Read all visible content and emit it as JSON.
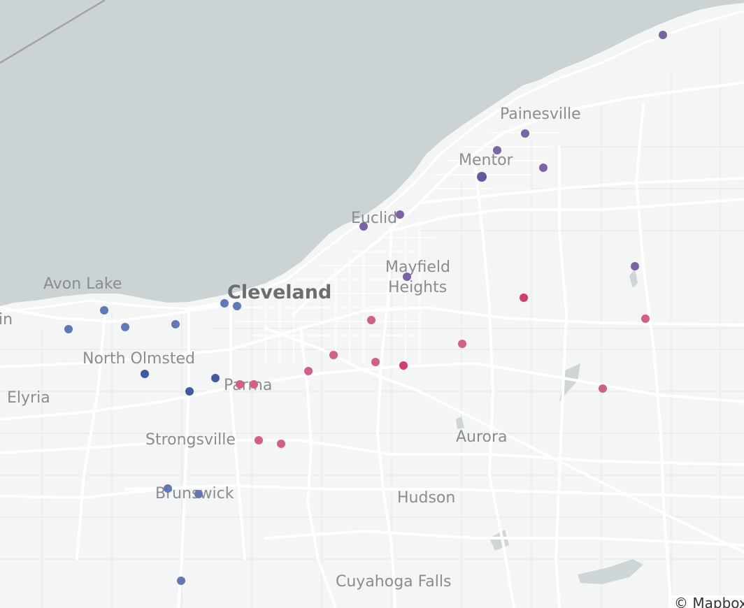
{
  "map": {
    "colors": {
      "water": "#cbd3d4",
      "land": "#f4f5f5",
      "road": "#ffffff",
      "road_minor": "#eceeee",
      "park": "#e7e9e9",
      "label": "#8a8d90",
      "label_major": "#6b6e71",
      "boundary": "#a3a3a3"
    },
    "places": [
      {
        "name": "Painesville"
      },
      {
        "name": "Mentor"
      },
      {
        "name": "Euclid"
      },
      {
        "name": "Mayfield"
      },
      {
        "name": "Heights"
      },
      {
        "name": "Avon Lake"
      },
      {
        "name": "Cleveland"
      },
      {
        "name": "in"
      },
      {
        "name": "North Olmsted"
      },
      {
        "name": "Parma"
      },
      {
        "name": "Elyria"
      },
      {
        "name": "Strongsville"
      },
      {
        "name": "Aurora"
      },
      {
        "name": "Brunswick"
      },
      {
        "name": "Hudson"
      },
      {
        "name": "Cuyahoga Falls"
      }
    ],
    "markers": [
      {
        "color": "#7a63a7"
      },
      {
        "color": "#7a63a7"
      },
      {
        "color": "#7a63a7"
      },
      {
        "color": "#7a63a7"
      },
      {
        "color": "#6a55a0"
      },
      {
        "color": "#7a63a7"
      },
      {
        "color": "#7a63a7"
      },
      {
        "color": "#7a63a7"
      },
      {
        "color": "#7a63a7"
      },
      {
        "color": "#5f78b6"
      },
      {
        "color": "#5f78b6"
      },
      {
        "color": "#5f78b6"
      },
      {
        "color": "#5f78b6"
      },
      {
        "color": "#5f78b6"
      },
      {
        "color": "#5f78b6"
      },
      {
        "color": "#3f5aa3"
      },
      {
        "color": "#3f5aa3"
      },
      {
        "color": "#3f5aa3"
      },
      {
        "color": "#5f78b6"
      },
      {
        "color": "#5f78b6"
      },
      {
        "color": "#5f78b6"
      },
      {
        "color": "#d35e86"
      },
      {
        "color": "#d35e86"
      },
      {
        "color": "#d35e86"
      },
      {
        "color": "#d35e86"
      },
      {
        "color": "#d35e86"
      },
      {
        "color": "#d35e86"
      },
      {
        "color": "#d35e86"
      },
      {
        "color": "#d35e86"
      },
      {
        "color": "#d35e86"
      },
      {
        "color": "#d35e86"
      },
      {
        "color": "#d35e86"
      },
      {
        "color": "#d23d6e"
      },
      {
        "color": "#d23d6e"
      }
    ],
    "attribution": "© Mapbox"
  }
}
